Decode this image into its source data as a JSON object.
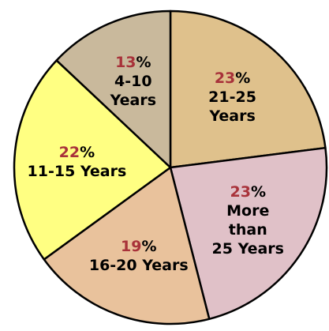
{
  "chart_data": {
    "type": "pie",
    "categories": [
      "21-25 Years",
      "More than\n25 Years",
      "16-20 Years",
      "11-15 Years",
      "4-10\nYears"
    ],
    "values": [
      23,
      23,
      19,
      22,
      13
    ],
    "value_unit": "%",
    "colors": [
      "#dfc18c",
      "#e0c1c8",
      "#e9c29c",
      "#ffff82",
      "#c9b99c"
    ]
  }
}
